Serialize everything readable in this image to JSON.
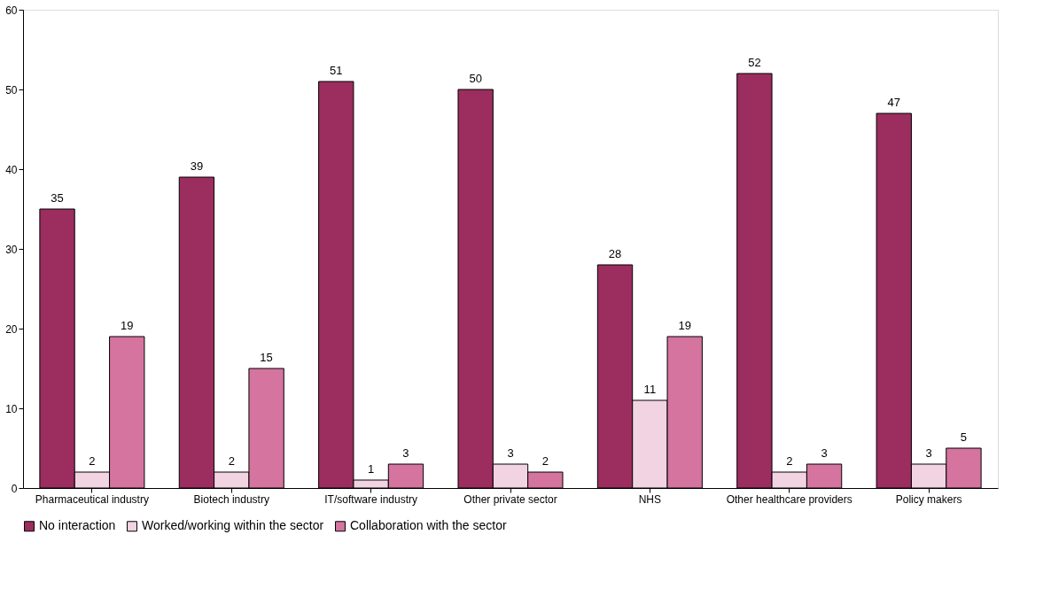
{
  "chart_data": {
    "type": "bar",
    "categories": [
      "Pharmaceutical industry",
      "Biotech industry",
      "IT/software industry",
      "Other private sector",
      "NHS",
      "Other healthcare providers",
      "Policy makers"
    ],
    "series": [
      {
        "name": "No interaction",
        "color": "#9b2d5f",
        "values": [
          35,
          39,
          51,
          50,
          28,
          52,
          47
        ]
      },
      {
        "name": "Worked/working within the sector",
        "color": "#f2d3e2",
        "values": [
          2,
          2,
          1,
          3,
          11,
          2,
          3
        ]
      },
      {
        "name": "Collaboration with the sector",
        "color": "#d4749f",
        "values": [
          19,
          15,
          3,
          2,
          19,
          3,
          5
        ]
      }
    ],
    "ylim": [
      0,
      60
    ],
    "yticks": [
      0,
      10,
      20,
      30,
      40,
      50,
      60
    ],
    "grid": false,
    "legend": "bottom",
    "data_labels": true
  }
}
